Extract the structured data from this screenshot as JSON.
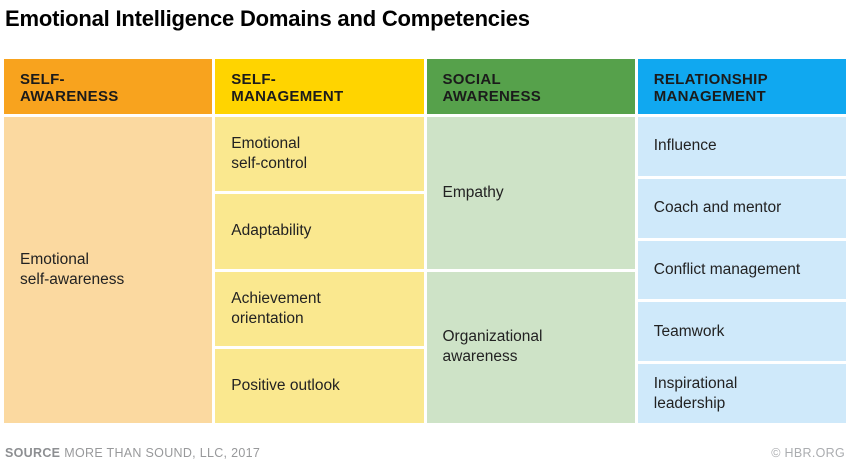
{
  "title": "Emotional Intelligence Domains and Competencies",
  "columns": [
    {
      "id": "self-awareness",
      "header": "SELF-\nAWARENESS",
      "header_color": "#F8A31E",
      "cell_color": "#FBD9A0",
      "competencies": [
        "Emotional\nself-awareness"
      ]
    },
    {
      "id": "self-management",
      "header": "SELF-\nMANAGEMENT",
      "header_color": "#FFD400",
      "cell_color": "#FAE88F",
      "competencies": [
        "Emotional\nself-control",
        "Adaptability",
        "Achievement\norientation",
        "Positive outlook"
      ]
    },
    {
      "id": "social-awareness",
      "header": "SOCIAL\nAWARENESS",
      "header_color": "#56A14B",
      "cell_color": "#CEE3C7",
      "competencies": [
        "Empathy",
        "Organizational\nawareness"
      ]
    },
    {
      "id": "relationship-management",
      "header": "RELATIONSHIP\nMANAGEMENT",
      "header_color": "#10A8F0",
      "cell_color": "#CFE9FA",
      "competencies": [
        "Influence",
        "Coach and mentor",
        "Conflict management",
        "Teamwork",
        "Inspirational\nleadership"
      ]
    }
  ],
  "footer": {
    "source_label": "SOURCE",
    "source_text": "MORE THAN SOUND, LLC, 2017",
    "credit": "© HBR.ORG"
  },
  "chart_data": {
    "type": "table",
    "title": "Emotional Intelligence Domains and Competencies",
    "columns": [
      "SELF-AWARENESS",
      "SELF-MANAGEMENT",
      "SOCIAL AWARENESS",
      "RELATIONSHIP MANAGEMENT"
    ],
    "rows_by_column": {
      "SELF-AWARENESS": [
        "Emotional self-awareness"
      ],
      "SELF-MANAGEMENT": [
        "Emotional self-control",
        "Adaptability",
        "Achievement orientation",
        "Positive outlook"
      ],
      "SOCIAL AWARENESS": [
        "Empathy",
        "Organizational awareness"
      ],
      "RELATIONSHIP MANAGEMENT": [
        "Influence",
        "Coach and mentor",
        "Conflict management",
        "Teamwork",
        "Inspirational leadership"
      ]
    },
    "legend_position": "none",
    "grid": false,
    "column_colors": {
      "SELF-AWARENESS": {
        "header": "#F8A31E",
        "cells": "#FBD9A0"
      },
      "SELF-MANAGEMENT": {
        "header": "#FFD400",
        "cells": "#FAE88F"
      },
      "SOCIAL AWARENESS": {
        "header": "#56A14B",
        "cells": "#CEE3C7"
      },
      "RELATIONSHIP MANAGEMENT": {
        "header": "#10A8F0",
        "cells": "#CFE9FA"
      }
    },
    "source": "SOURCE MORE THAN SOUND, LLC, 2017",
    "credit": "© HBR.ORG"
  }
}
